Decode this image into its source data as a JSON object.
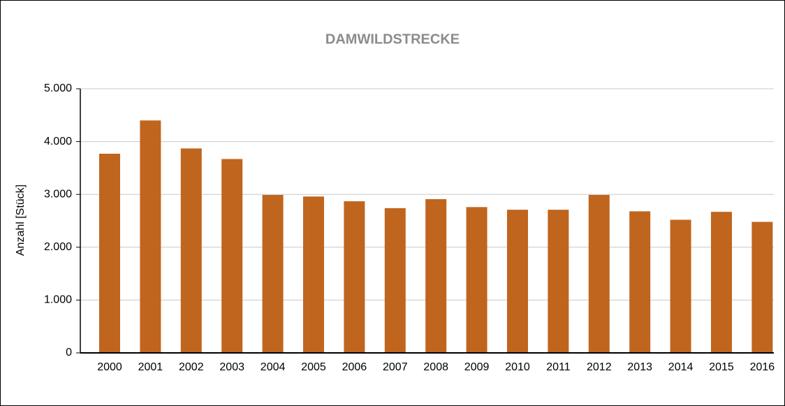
{
  "chart_data": {
    "type": "bar",
    "title": "DAMWILDSTRECKE",
    "y_label": "Anzahl [Stück]",
    "categories": [
      "2000",
      "2001",
      "2002",
      "2003",
      "2004",
      "2005",
      "2006",
      "2007",
      "2008",
      "2009",
      "2010",
      "2011",
      "2012",
      "2013",
      "2014",
      "2015",
      "2016"
    ],
    "values": [
      3770,
      4400,
      3870,
      3670,
      2990,
      2960,
      2870,
      2740,
      2910,
      2760,
      2710,
      2710,
      2990,
      2680,
      2520,
      2670,
      2480
    ],
    "color": "#c0651e",
    "ylim": [
      0,
      5000
    ],
    "yticks": [
      0,
      {
        "value": 1000,
        "label": "1.000"
      },
      {
        "value": 2000,
        "label": "2.000"
      },
      {
        "value": 3000,
        "label": "3.000"
      },
      {
        "value": 4000,
        "label": "4.000"
      },
      {
        "value": 5000,
        "label": "5.000"
      }
    ],
    "grid": true
  }
}
